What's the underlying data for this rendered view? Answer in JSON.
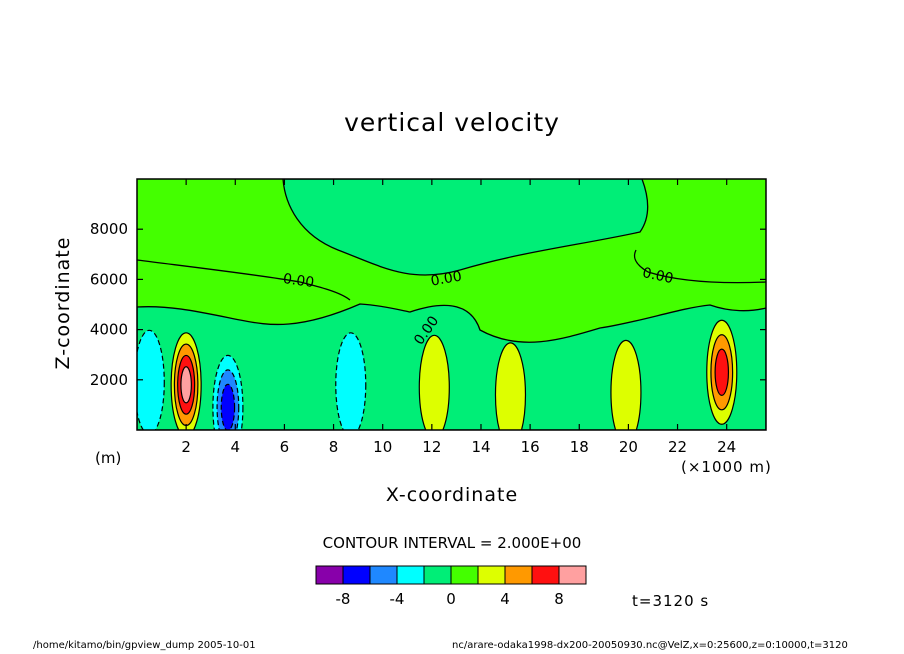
{
  "chart_data": {
    "type": "heatmap",
    "title": "vertical velocity",
    "xlabel": "X-coordinate",
    "ylabel": "Z-coordinate",
    "x_unit": "(×1000 m)",
    "y_unit": "(m)",
    "x_range": [
      0,
      25600
    ],
    "y_range": [
      0,
      10000
    ],
    "x_ticks": [
      "2",
      "4",
      "6",
      "8",
      "10",
      "12",
      "14",
      "16",
      "18",
      "20",
      "22",
      "24"
    ],
    "y_ticks": [
      "2000",
      "4000",
      "6000",
      "8000"
    ],
    "x_tick_values": [
      2000,
      4000,
      6000,
      8000,
      10000,
      12000,
      14000,
      16000,
      18000,
      20000,
      22000,
      24000
    ],
    "y_tick_values": [
      2000,
      4000,
      6000,
      8000
    ],
    "contour_labels": [
      "0.00",
      "0.00",
      "0.00",
      "0.00"
    ],
    "contour_interval": "CONTOUR INTERVAL = 2.000E+00",
    "colorbar": {
      "levels": [
        -10,
        -8,
        -6,
        -4,
        -2,
        0,
        2,
        4,
        6,
        8,
        10
      ],
      "tick_labels": [
        "-8",
        "-4",
        "0",
        "4",
        "8"
      ],
      "tick_values": [
        -8,
        -4,
        0,
        4,
        8
      ],
      "colors": [
        "#8800aa",
        "#0000ff",
        "#1f88ff",
        "#00ffff",
        "#00ee77",
        "#44ff00",
        "#ddff00",
        "#ff9900",
        "#ff1010",
        "#ffa0a0"
      ]
    },
    "features": [
      {
        "x": 2000,
        "z": 1800,
        "peak": 8.2
      },
      {
        "x": 23800,
        "z": 2300,
        "peak": 6.5
      },
      {
        "x": 3700,
        "z": 900,
        "peak": -7.0
      },
      {
        "x": 8700,
        "z": 1800,
        "peak": -3.4
      },
      {
        "x": 500,
        "z": 1900,
        "peak": -3.0
      },
      {
        "x": 12100,
        "z": 1700,
        "peak": 3.2
      },
      {
        "x": 19900,
        "z": 1500,
        "peak": 3.0
      },
      {
        "x": 15200,
        "z": 1400,
        "peak": 2.6
      }
    ]
  },
  "time_label": "t=3120 s",
  "footer_left": "/home/kitamo/bin/gpview_dump  2005-10-01",
  "footer_right": "nc/arare-odaka1998-dx200-20050930.nc@VelZ,x=0:25600,z=0:10000,t=3120"
}
